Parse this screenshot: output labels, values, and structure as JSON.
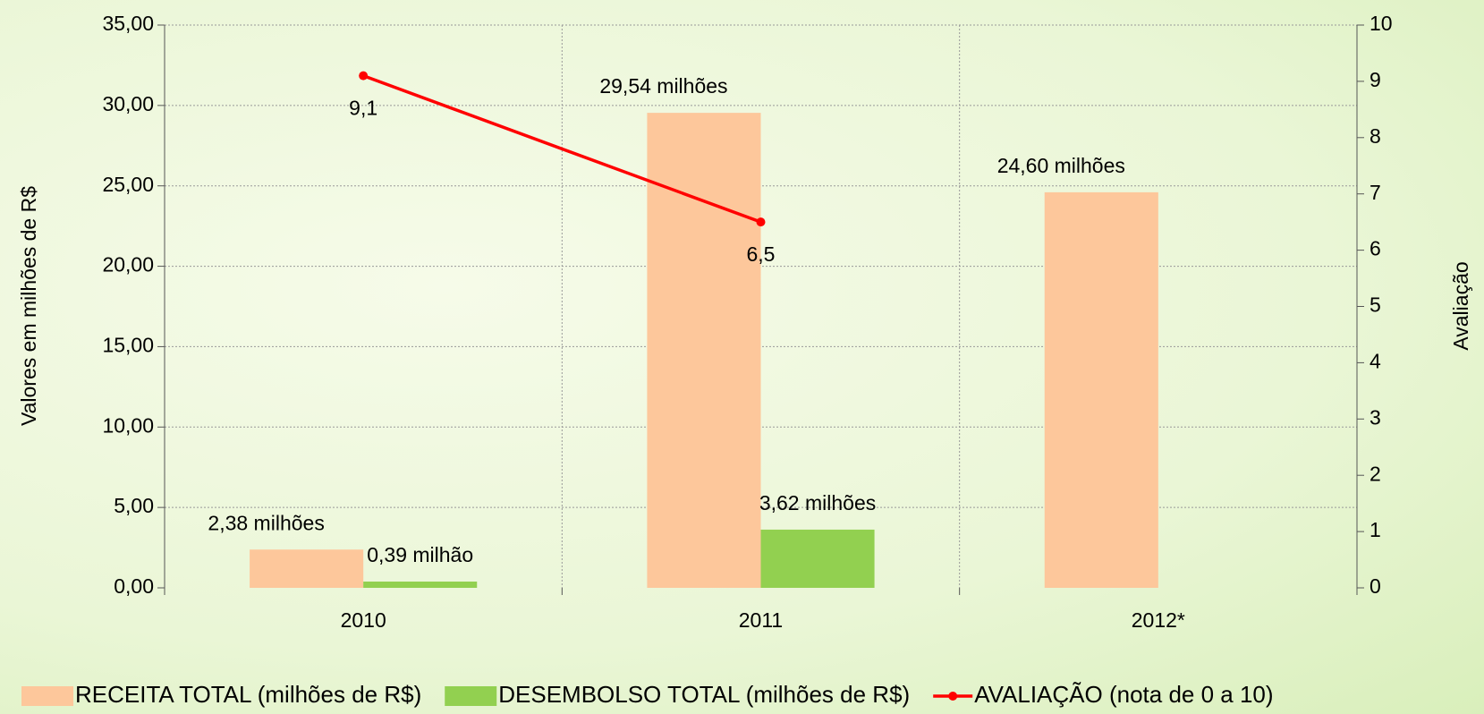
{
  "chart_data": {
    "type": "bar",
    "categories": [
      "2010",
      "2011",
      "2012*"
    ],
    "series": [
      {
        "name": "RECEITA TOTAL (milhões de R$)",
        "color": "#fdc79b",
        "values": [
          2.38,
          29.54,
          24.6
        ],
        "value_labels": [
          "2,38 milhões",
          "29,54 milhões",
          "24,60 milhões"
        ]
      },
      {
        "name": "DESEMBOLSO TOTAL (milhões de R$)",
        "color": "#92d050",
        "values": [
          0.39,
          3.62,
          null
        ],
        "value_labels": [
          "0,39 milhão",
          "3,62 milhões",
          null
        ]
      },
      {
        "name": "AVALIAÇÃO (nota de 0 a 10)",
        "color": "#ff0000",
        "type": "line",
        "axis": "y2",
        "values": [
          9.1,
          6.5,
          null
        ],
        "value_labels": [
          "9,1",
          "6,5",
          null
        ]
      }
    ],
    "y_label": "Valores em milhões de R$",
    "y2_label": "Avaliação",
    "ylim": [
      0,
      35
    ],
    "yticks": [
      {
        "value": 0,
        "label": "0,00"
      },
      {
        "value": 5,
        "label": "5,00"
      },
      {
        "value": 10,
        "label": "10,00"
      },
      {
        "value": 15,
        "label": "15,00"
      },
      {
        "value": 20,
        "label": "20,00"
      },
      {
        "value": 25,
        "label": "25,00"
      },
      {
        "value": 30,
        "label": "30,00"
      },
      {
        "value": 35,
        "label": "35,00"
      }
    ],
    "y2lim": [
      0,
      10
    ],
    "y2ticks": [
      0,
      1,
      2,
      3,
      4,
      5,
      6,
      7,
      8,
      9,
      10
    ],
    "grid": true,
    "legend": "bottom"
  }
}
